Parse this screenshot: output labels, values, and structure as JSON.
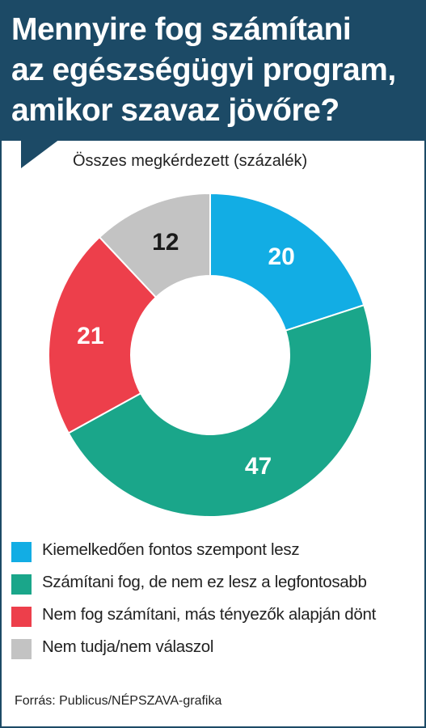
{
  "header": {
    "title_lines": [
      "Mennyire fog számítani",
      "az egészségügyi program,",
      "amikor szavaz jövőre?"
    ],
    "background_color": "#1c4a66"
  },
  "chart_data": {
    "type": "pie",
    "subtitle": "Összes megkérdezett (százalék)",
    "unit": "%",
    "donut": true,
    "slices": [
      {
        "label": "Kiemelkedően fontos szempont lesz",
        "value": 20,
        "color": "#12ade4",
        "label_color": "#ffffff"
      },
      {
        "label": "Számítani fog, de nem ez lesz a legfontosabb",
        "value": 47,
        "color": "#1aa68a",
        "label_color": "#ffffff"
      },
      {
        "label": "Nem fog számítani, más tényezők alapján dönt",
        "value": 21,
        "color": "#ed3f4b",
        "label_color": "#ffffff"
      },
      {
        "label": "Nem tudja/nem válaszol",
        "value": 12,
        "color": "#c3c3c3",
        "label_color": "#1a1a1a"
      }
    ],
    "start_angle": "12 o'clock",
    "direction": "clockwise",
    "legend_position": "bottom"
  },
  "source": "Forrás: Publicus/NÉPSZAVA-grafika"
}
